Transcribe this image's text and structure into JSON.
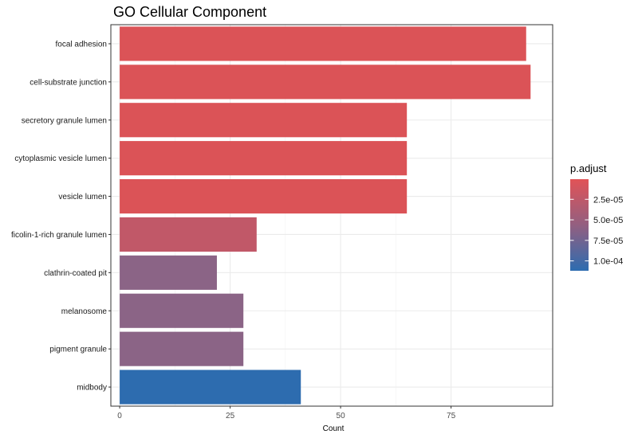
{
  "chart_data": {
    "type": "bar",
    "orientation": "horizontal",
    "title": "GO Cellular Component",
    "xlabel": "Count",
    "ylabel": "",
    "xlim": [
      -2,
      98
    ],
    "xticks": [
      0,
      25,
      50,
      75
    ],
    "grid": true,
    "categories": [
      "focal adhesion",
      "cell-substrate junction",
      "secretory granule lumen",
      "cytoplasmic vesicle lumen",
      "vesicle lumen",
      "ficolin-1-rich granule lumen",
      "clathrin-coated pit",
      "melanosome",
      "pigment granule",
      "midbody"
    ],
    "values": [
      92,
      93,
      65,
      65,
      65,
      31,
      22,
      28,
      28,
      41
    ],
    "p_adjust": [
      5e-07,
      5e-07,
      1e-06,
      1e-06,
      1e-06,
      2e-05,
      5e-05,
      5e-05,
      5e-05,
      0.000112
    ],
    "bar_colors": [
      "#db5357",
      "#db5357",
      "#db5357",
      "#db5357",
      "#db5357",
      "#c15868",
      "#8b6486",
      "#8b6486",
      "#8b6486",
      "#2d6caf"
    ],
    "legend": {
      "title": "p.adjust",
      "position": "right",
      "type": "colorbar",
      "range": [
        5e-07,
        0.000112
      ],
      "labels": [
        "2.5e-05",
        "5.0e-05",
        "7.5e-05",
        "1.0e-04"
      ],
      "label_values": [
        2.5e-05,
        5e-05,
        7.5e-05,
        0.0001
      ],
      "color_low": "#e15357",
      "color_high": "#2d6cb0"
    }
  }
}
